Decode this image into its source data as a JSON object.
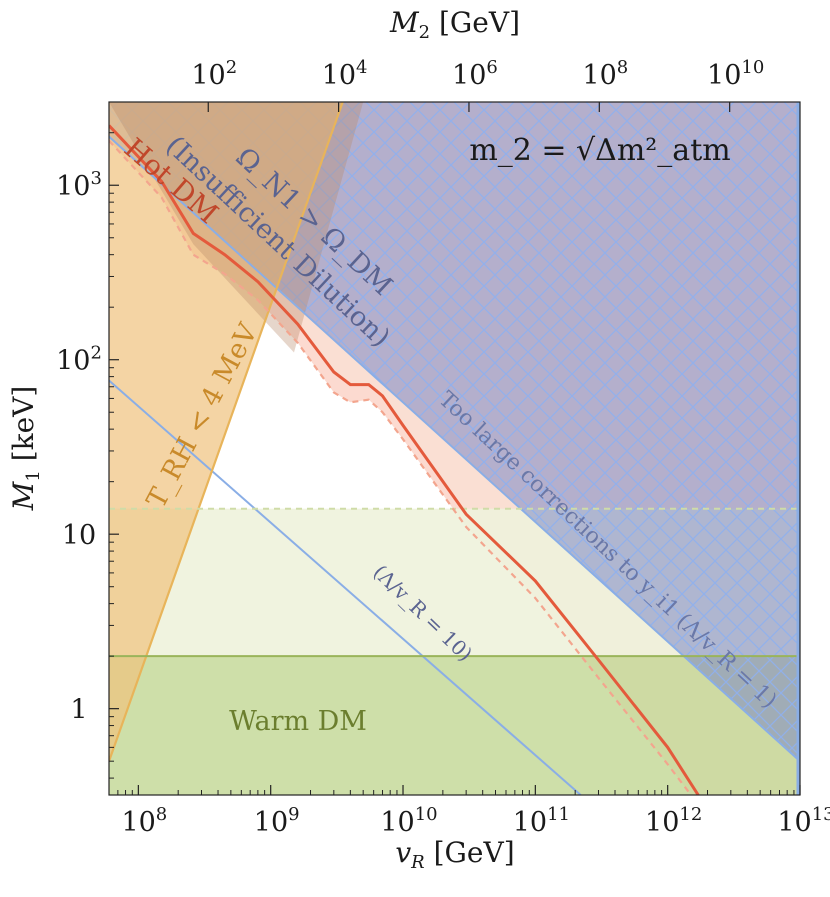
{
  "chart_data": {
    "type": "area",
    "title": "",
    "xlabel": "v_R [GeV]",
    "ylabel": "M_1 [keV]",
    "x2label": "M_2 [GeV]",
    "xscale": "log",
    "yscale": "log",
    "xlim": [
      60000000.0,
      10000000000000.0
    ],
    "ylim": [
      0.32,
      3000
    ],
    "x2lim": [
      3,
      120000000000.0
    ],
    "x_ticks": [
      {
        "value": 100000000.0,
        "label": "10^8"
      },
      {
        "value": 1000000000.0,
        "label": "10^9"
      },
      {
        "value": 10000000000.0,
        "label": "10^10"
      },
      {
        "value": 100000000000.0,
        "label": "10^11"
      },
      {
        "value": 1000000000000.0,
        "label": "10^12"
      },
      {
        "value": 10000000000000.0,
        "label": "10^13"
      }
    ],
    "x2_ticks": [
      {
        "value": 100.0,
        "label": "10^2"
      },
      {
        "value": 10000.0,
        "label": "10^4"
      },
      {
        "value": 1000000.0,
        "label": "10^6"
      },
      {
        "value": 100000000.0,
        "label": "10^8"
      },
      {
        "value": 10000000000.0,
        "label": "10^10"
      }
    ],
    "y_ticks": [
      {
        "value": 1,
        "label": "1"
      },
      {
        "value": 10,
        "label": "10"
      },
      {
        "value": 100,
        "label": "10^2"
      },
      {
        "value": 1000,
        "label": "10^3"
      }
    ],
    "grid": false,
    "legend": "none",
    "colors": {
      "hot_dm": "#e45a3c",
      "hot_dm_fill": "#fbd3c8",
      "blue_region": "#7a86c6",
      "blue_line": "#8aaee6",
      "orange_region": "#f0c27e",
      "orange_line": "#e8b45a",
      "warm_dm": "#c6d99a",
      "warm_dm_line": "#9ab45a",
      "warm_dm_light": "#eef2dc"
    },
    "series": [
      {
        "name": "Hot DM",
        "kind": "curve",
        "x": [
          60000000.0,
          150000000.0,
          260000000.0,
          450000000.0,
          800000000.0,
          1600000000.0,
          3000000000.0,
          4000000000.0,
          5500000000.0,
          7000000000.0,
          10000000000.0,
          30000000000.0,
          100000000000.0,
          300000000000.0,
          1000000000000.0,
          1700000000000.0
        ],
        "y": [
          2200,
          1050,
          530,
          400,
          280,
          160,
          85,
          72,
          72,
          62,
          42,
          13,
          5.4,
          1.9,
          0.6,
          0.32
        ]
      },
      {
        "name": "Hot DM (dashed)",
        "kind": "curve",
        "x": [
          60000000.0,
          150000000.0,
          260000000.0,
          450000000.0,
          800000000.0,
          1600000000.0,
          3000000000.0,
          4000000000.0,
          5500000000.0,
          7000000000.0,
          10000000000.0,
          30000000000.0,
          100000000000.0,
          300000000000.0,
          1000000000000.0,
          1500000000000.0
        ],
        "y": [
          1800,
          850,
          400,
          310,
          220,
          125,
          65,
          57,
          59,
          50,
          35,
          11,
          4.3,
          1.5,
          0.48,
          0.32
        ]
      },
      {
        "name": "Too large corrections to y_i1 (Λ/v_R = 1)",
        "kind": "line",
        "x": [
          60000000.0,
          10000000000000.0
        ],
        "y": [
          1900,
          0.5
        ]
      },
      {
        "name": "(Λ/v_R = 10)",
        "kind": "line",
        "x": [
          60000000.0,
          220000000000.0
        ],
        "y": [
          76,
          0.32
        ]
      },
      {
        "name": "T_RH < 4 MeV",
        "kind": "line",
        "x": [
          60000000.0,
          3500000000.0
        ],
        "y": [
          0.5,
          3000
        ]
      },
      {
        "name": "Warm DM",
        "kind": "hline",
        "y": 2
      },
      {
        "name": "Warm DM (dashed)",
        "kind": "hline",
        "y": 14
      },
      {
        "name": "Ω_N1 > Ω_DM",
        "kind": "region",
        "x": [
          260000000.0,
          5000000000.0,
          20000000000.0
        ],
        "y": [
          3000,
          3000,
          3000
        ]
      }
    ],
    "annotations": [
      {
        "id": "hot",
        "text": "Hot DM"
      },
      {
        "id": "omega",
        "text": "Ω_N1 > Ω_DM"
      },
      {
        "id": "insuff",
        "text": "(Insufficient Dilution)"
      },
      {
        "id": "m2",
        "text": "m_2 = √Δm²_atm"
      },
      {
        "id": "trh",
        "text": "T_RH < 4 MeV"
      },
      {
        "id": "warm",
        "text": "Warm DM"
      },
      {
        "id": "toolarge",
        "text": "Too large corrections to y_i1 (Λ/v_R = 1)"
      },
      {
        "id": "lam10",
        "text": "(Λ/v_R = 10)"
      }
    ]
  }
}
